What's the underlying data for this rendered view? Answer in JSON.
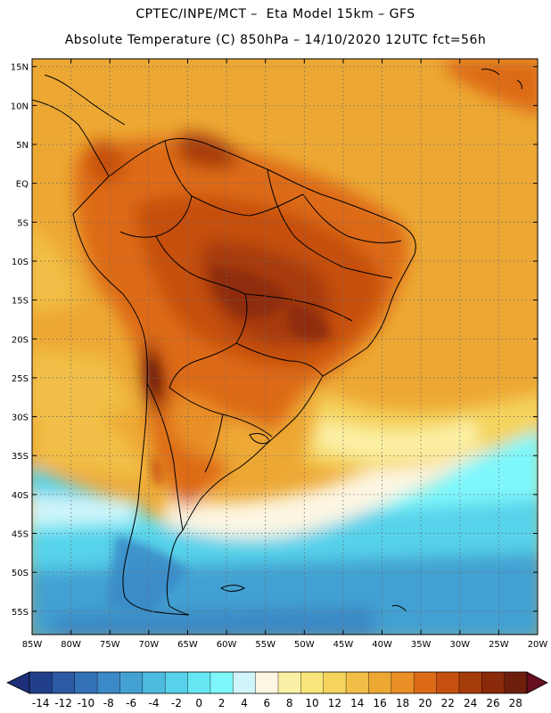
{
  "header": {
    "line1": "CPTEC/INPE/MCT –  Eta Model 15km – GFS",
    "line2": "Absolute Temperature (C) 850hPa – 14/10/2020 12UTC fct=56h"
  },
  "map": {
    "lon_range": [
      -85,
      -20
    ],
    "lat_range": [
      -58,
      16
    ],
    "lat_ticks": [
      {
        "value": 15,
        "label": "15N"
      },
      {
        "value": 10,
        "label": "10N"
      },
      {
        "value": 5,
        "label": "5N"
      },
      {
        "value": 0,
        "label": "EQ"
      },
      {
        "value": -5,
        "label": "5S"
      },
      {
        "value": -10,
        "label": "10S"
      },
      {
        "value": -15,
        "label": "15S"
      },
      {
        "value": -20,
        "label": "20S"
      },
      {
        "value": -25,
        "label": "25S"
      },
      {
        "value": -30,
        "label": "30S"
      },
      {
        "value": -35,
        "label": "35S"
      },
      {
        "value": -40,
        "label": "40S"
      },
      {
        "value": -45,
        "label": "45S"
      },
      {
        "value": -50,
        "label": "50S"
      },
      {
        "value": -55,
        "label": "55S"
      }
    ],
    "lon_ticks": [
      {
        "value": -85,
        "label": "85W"
      },
      {
        "value": -80,
        "label": "80W"
      },
      {
        "value": -75,
        "label": "75W"
      },
      {
        "value": -70,
        "label": "70W"
      },
      {
        "value": -65,
        "label": "65W"
      },
      {
        "value": -60,
        "label": "60W"
      },
      {
        "value": -55,
        "label": "55W"
      },
      {
        "value": -50,
        "label": "50W"
      },
      {
        "value": -45,
        "label": "45W"
      },
      {
        "value": -40,
        "label": "40W"
      },
      {
        "value": -35,
        "label": "35W"
      },
      {
        "value": -30,
        "label": "30W"
      },
      {
        "value": -25,
        "label": "25W"
      },
      {
        "value": -20,
        "label": "20W"
      }
    ],
    "grid": "dotted"
  },
  "colorbar": {
    "labels": [
      "-14",
      "-12",
      "-10",
      "-8",
      "-6",
      "-4",
      "-2",
      "0",
      "2",
      "4",
      "6",
      "8",
      "10",
      "12",
      "14",
      "16",
      "18",
      "20",
      "22",
      "24",
      "26",
      "28"
    ],
    "colors": [
      "#223f8c",
      "#2c5aa3",
      "#3372b6",
      "#3b89c6",
      "#43a1d2",
      "#4dbbdf",
      "#57d2ea",
      "#66e6f3",
      "#7ef7fb",
      "#d0f5fb",
      "#fdf6e2",
      "#fbf1a6",
      "#f8e67a",
      "#f5d45d",
      "#f1bf47",
      "#eda834",
      "#e88f26",
      "#dd6a16",
      "#c6500f",
      "#a63b0b",
      "#8a2a0a",
      "#6e1f0c"
    ],
    "left_arrow_color": "#1d2f78",
    "right_arrow_color": "#650f20"
  }
}
